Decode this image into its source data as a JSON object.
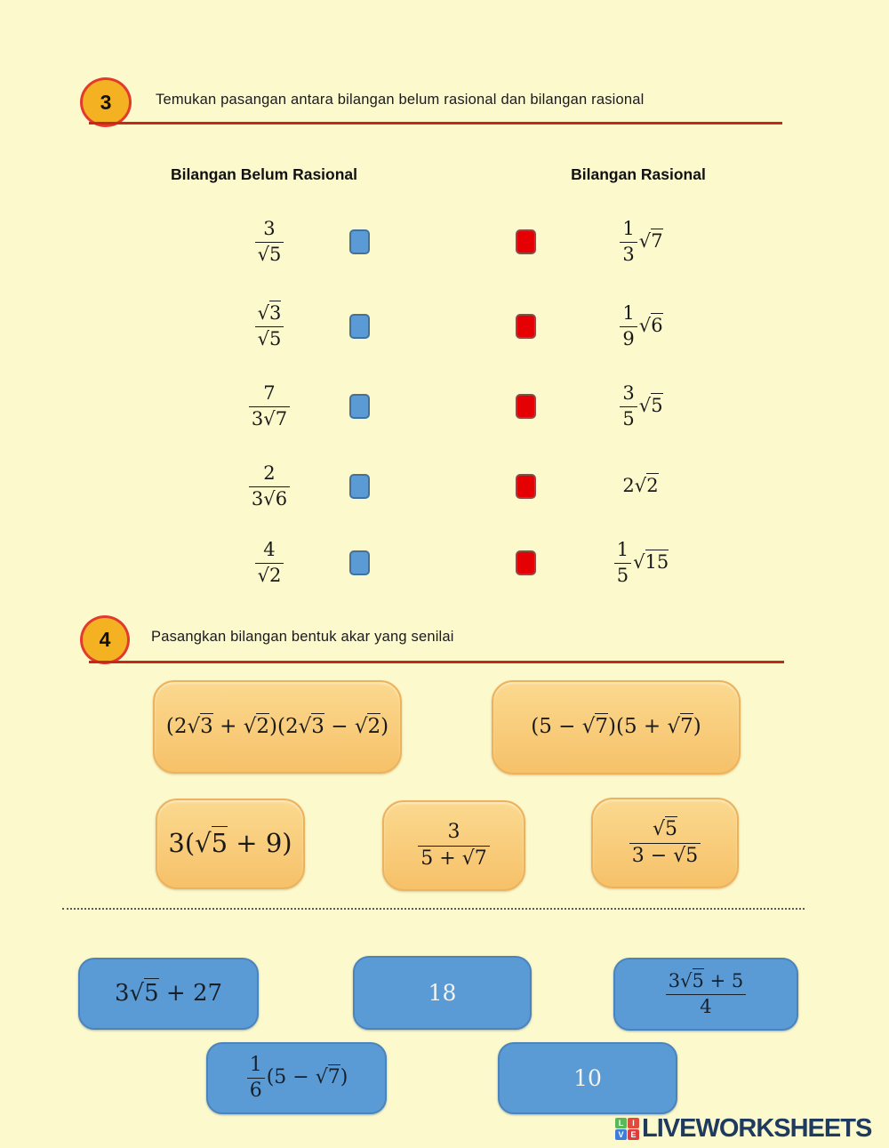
{
  "colors": {
    "background": "#FCF9CD",
    "accent_red_line": "#C22B1C",
    "badge_fill": "#F4B223",
    "badge_border": "#E23B2E",
    "blue_checkbox": "#5B9BD5",
    "blue_checkbox_border": "#41719C",
    "red_checkbox": "#E50004",
    "red_checkbox_border": "#8A4B49",
    "orange_card": "#F8C873",
    "orange_card_border": "#EDB25C",
    "answer_box": "#5B9BD5",
    "logo_text_color": "#1E3A5F"
  },
  "q3": {
    "number": "3",
    "title": "Temukan pasangan antara bilangan belum rasional dan bilangan rasional",
    "left_header": "Bilangan Belum Rasional",
    "right_header": "Bilangan Rasional",
    "rows": [
      {
        "left": "[f:3|[r:5]]",
        "right": "[f:1|3][r:7]"
      },
      {
        "left": "[f:[r:3]|[r:5]]",
        "right": "[f:1|9][r:6]"
      },
      {
        "left": "[f:7|3[r:7]]",
        "right": "[f:3|5][r:5]"
      },
      {
        "left": "[f:2|3[r:6]]",
        "right": "2[r:2]"
      },
      {
        "left": "[f:4|[r:2]]",
        "right": "[f:1|5][r:15]"
      }
    ]
  },
  "q4": {
    "number": "4",
    "title": "Pasangkan bilangan bentuk akar yang senilai",
    "cards": [
      "(2[r:3] + [r:2])(2[r:3] − [r:2])",
      "(5 − [r:7])(5 + [r:7])",
      "3([r:5] + 9)",
      "[f:3|5 + [r:7]]",
      "[f:[r:5]|3 − [r:5]]"
    ],
    "answers": [
      "3[r:5] + 27",
      "18",
      "[f:3[r:5] + 5|4]",
      "[f:1|6](5 − [r:7])",
      "10"
    ]
  },
  "footer": {
    "logo_tiles": [
      {
        "letter": "L",
        "color": "#58B957"
      },
      {
        "letter": "I",
        "color": "#E04B3B"
      },
      {
        "letter": "V",
        "color": "#3E7EDB"
      },
      {
        "letter": "E",
        "color": "#E03A3A"
      }
    ],
    "logo_text": "LIVEWORKSHEETS"
  }
}
